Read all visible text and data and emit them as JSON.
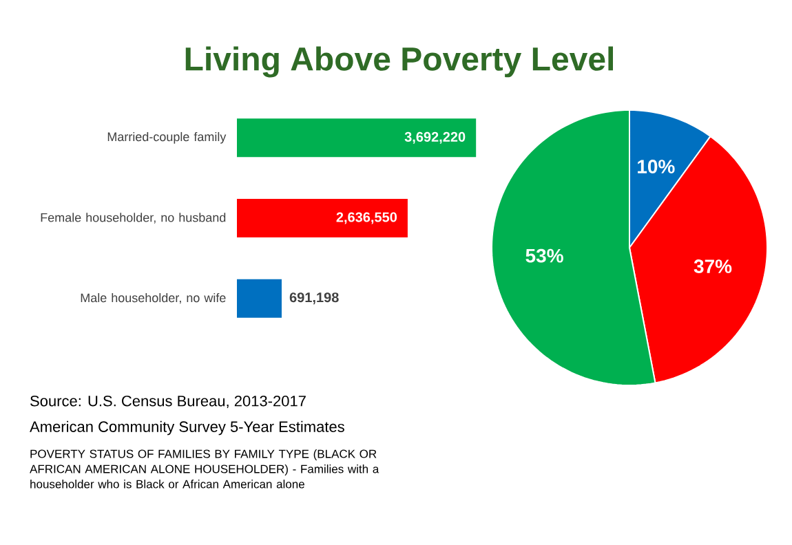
{
  "chart_data": [
    {
      "type": "bar",
      "orientation": "horizontal",
      "title": "Living Above Poverty Level",
      "categories": [
        "Married-couple family",
        "Female householder, no husband",
        "Male householder, no wife"
      ],
      "values": [
        3692220,
        2636550,
        691198
      ],
      "colors": [
        "#00b050",
        "#ff0000",
        "#0070c0"
      ],
      "value_labels": [
        "3,692,220",
        "2,636,550",
        "691,198"
      ],
      "annotations": [
        "Source: U.S. Census Bureau, 2013-2017",
        "American Community Survey 5-Year Estimates",
        "POVERTY STATUS OF FAMILIES BY FAMILY TYPE (BLACK OR AFRICAN AMERICAN ALONE HOUSEHOLDER) - Families with a householder who is Black or African American alone"
      ]
    },
    {
      "type": "pie",
      "categories": [
        null,
        null,
        null
      ],
      "values": [
        10,
        37,
        53
      ],
      "value_labels": [
        "10%",
        "37%",
        "53%"
      ],
      "colors": [
        "#0070c0",
        "#ff0000",
        "#00b050"
      ]
    }
  ]
}
